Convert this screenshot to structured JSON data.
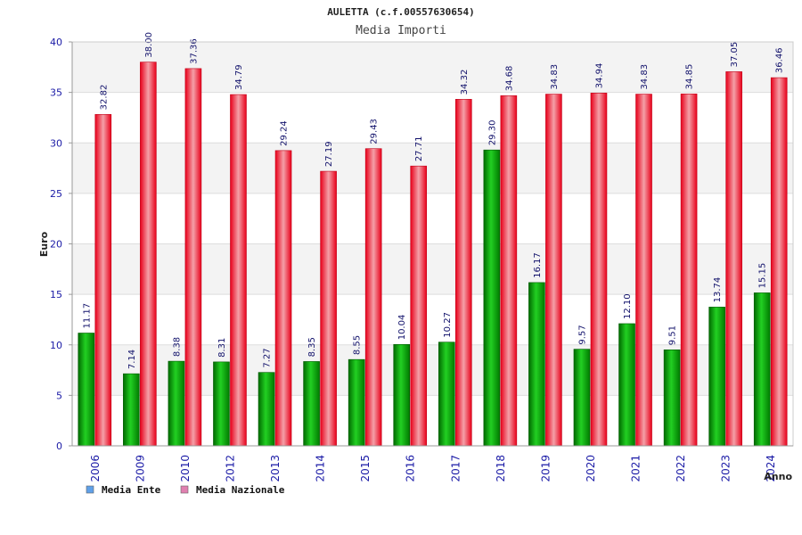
{
  "chart_data": {
    "type": "bar",
    "title": "AULETTA (c.f.00557630654)",
    "subtitle": "Media Importi",
    "xlabel": "Anno",
    "ylabel": "Euro",
    "ylim": [
      0,
      40
    ],
    "yticks": [
      0,
      5,
      10,
      15,
      20,
      25,
      30,
      35,
      40
    ],
    "grid": true,
    "legend_position": "bottom-left",
    "categories": [
      "2006",
      "2009",
      "2010",
      "2012",
      "2013",
      "2014",
      "2015",
      "2016",
      "2017",
      "2018",
      "2019",
      "2020",
      "2021",
      "2022",
      "2023",
      "2024"
    ],
    "series": [
      {
        "name": "Media Ente",
        "color": "#00a000",
        "legend_color": "#5fa0e8",
        "values": [
          11.17,
          7.14,
          8.38,
          8.31,
          7.27,
          8.35,
          8.55,
          10.04,
          10.27,
          29.3,
          16.17,
          9.57,
          12.1,
          9.51,
          13.74,
          15.15
        ],
        "labels": [
          "11.17",
          "7.14",
          "8.38",
          "8.31",
          "7.27",
          "8.35",
          "8.55",
          "10.04",
          "10.27",
          "29.30",
          "16.17",
          "9.57",
          "12.10",
          "9.51",
          "13.74",
          "15.15"
        ]
      },
      {
        "name": "Media Nazionale",
        "color": "#e8001a",
        "legend_color": "#e080b0",
        "values": [
          32.82,
          38.0,
          37.36,
          34.79,
          29.24,
          27.19,
          29.43,
          27.71,
          34.32,
          34.68,
          34.83,
          34.94,
          34.83,
          34.85,
          37.05,
          36.46
        ],
        "labels": [
          "32.82",
          "38.00",
          "37.36",
          "34.79",
          "29.24",
          "27.19",
          "29.43",
          "27.71",
          "34.32",
          "34.68",
          "34.83",
          "34.94",
          "34.83",
          "34.85",
          "37.05",
          "36.46"
        ]
      }
    ]
  }
}
